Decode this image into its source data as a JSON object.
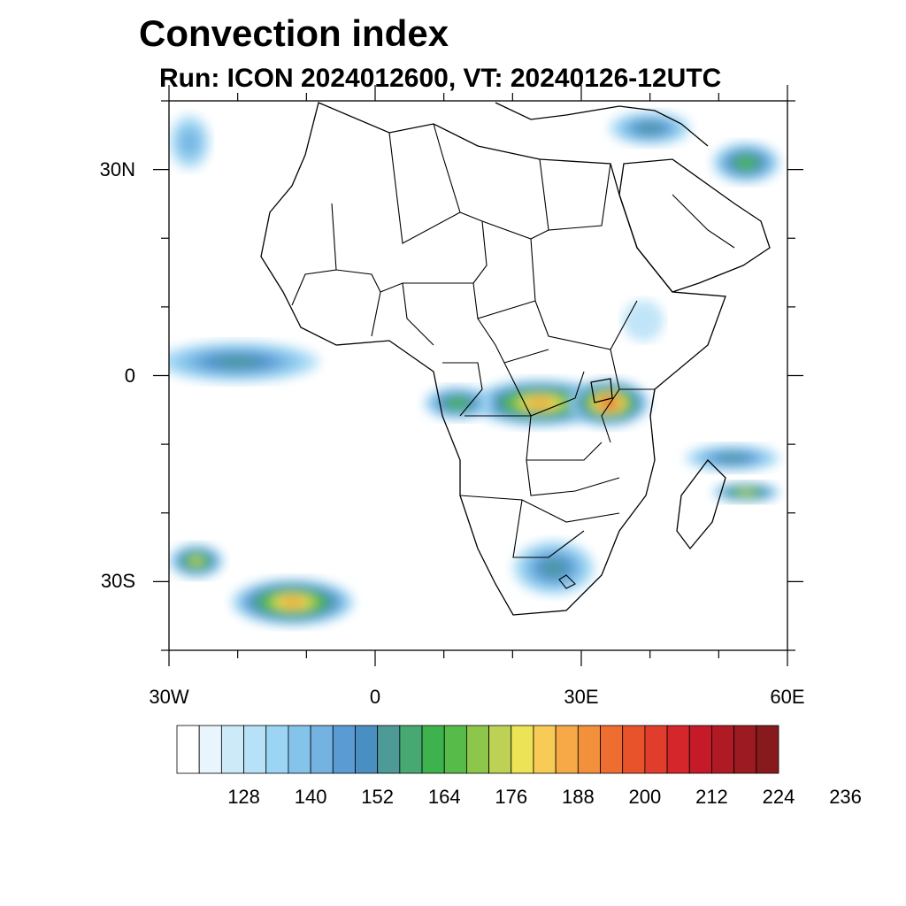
{
  "title": "Convection index",
  "subtitle": "Run: ICON 2024012600,  VT: 20240126-12UTC",
  "map": {
    "projection": "cylindrical equidistant",
    "lon_range": [
      -30,
      60
    ],
    "lat_range": [
      -40,
      40
    ],
    "lat_labels": [
      {
        "lat": 30,
        "label": "30N"
      },
      {
        "lat": 0,
        "label": "0"
      },
      {
        "lat": -30,
        "label": "30S"
      }
    ],
    "lon_labels": [
      {
        "lon": -30,
        "label": "30W"
      },
      {
        "lon": 0,
        "label": "0"
      },
      {
        "lon": 30,
        "label": "30E"
      },
      {
        "lon": 60,
        "label": "60E"
      }
    ],
    "regions": [
      {
        "name": "equatorial-atlantic-band",
        "lon": -20,
        "lat": 2,
        "rx_deg": 12,
        "ry_deg": 3,
        "level": 152
      },
      {
        "name": "congo-basin-convection",
        "lon": 24,
        "lat": -4,
        "rx_deg": 10,
        "ry_deg": 3.5,
        "level": 188
      },
      {
        "name": "lake-victoria-convection",
        "lon": 34,
        "lat": -4,
        "rx_deg": 6,
        "ry_deg": 3.5,
        "level": 200
      },
      {
        "name": "gabon-convection",
        "lon": 12,
        "lat": -4,
        "rx_deg": 5,
        "ry_deg": 2.5,
        "level": 164
      },
      {
        "name": "south-atlantic-storm",
        "lon": -12,
        "lat": -33,
        "rx_deg": 9,
        "ry_deg": 3.5,
        "level": 188
      },
      {
        "name": "sw-atlantic-band",
        "lon": -26,
        "lat": -27,
        "rx_deg": 4,
        "ry_deg": 2.5,
        "level": 176
      },
      {
        "name": "southern-africa",
        "lon": 26,
        "lat": -28,
        "rx_deg": 6,
        "ry_deg": 4,
        "level": 152
      },
      {
        "name": "indian-ocean-band",
        "lon": 52,
        "lat": -12,
        "rx_deg": 7,
        "ry_deg": 2,
        "level": 152
      },
      {
        "name": "madagascar-east",
        "lon": 54,
        "lat": -17,
        "rx_deg": 5,
        "ry_deg": 1.5,
        "level": 176
      },
      {
        "name": "iran-convection",
        "lon": 54,
        "lat": 31,
        "rx_deg": 5,
        "ry_deg": 3,
        "level": 164
      },
      {
        "name": "levant-convection",
        "lon": 40,
        "lat": 36,
        "rx_deg": 6,
        "ry_deg": 2.5,
        "level": 152
      },
      {
        "name": "nw-atlantic",
        "lon": -27,
        "lat": 34,
        "rx_deg": 3,
        "ry_deg": 4,
        "level": 140
      },
      {
        "name": "ethiopia-highlands",
        "lon": 39,
        "lat": 8,
        "rx_deg": 3,
        "ry_deg": 3,
        "level": 128
      }
    ]
  },
  "colorbar": {
    "colors": [
      "#ffffff",
      "#e8f5fd",
      "#cdeaf9",
      "#b6e1f7",
      "#9cd5f3",
      "#85c4ea",
      "#74b2e2",
      "#5a9bd3",
      "#4a8fc2",
      "#4d9a97",
      "#47a872",
      "#3eb34d",
      "#56bb48",
      "#8cc64b",
      "#bdd155",
      "#ede356",
      "#f7cb56",
      "#f6a946",
      "#f2903b",
      "#ee6d31",
      "#e8532c",
      "#e13d2c",
      "#d5262b",
      "#c51b29",
      "#b01a25",
      "#9c1a21",
      "#871a1c"
    ],
    "tick_labels": [
      "128",
      "140",
      "152",
      "164",
      "176",
      "188",
      "200",
      "212",
      "224",
      "236"
    ],
    "tick_levels": [
      128,
      140,
      152,
      164,
      176,
      188,
      200,
      212,
      224,
      236
    ],
    "first_level": 116,
    "step": 4
  }
}
